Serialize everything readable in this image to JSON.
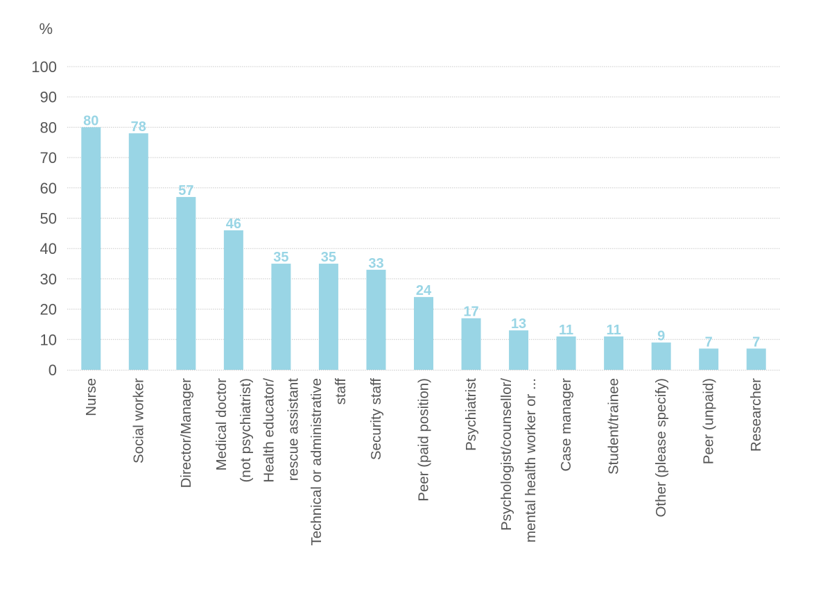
{
  "chart_data": {
    "type": "bar",
    "title": "",
    "ylabel": "%",
    "xlabel": "",
    "ylim": [
      0,
      100
    ],
    "yticks": [
      0,
      10,
      20,
      30,
      40,
      50,
      60,
      70,
      80,
      90,
      100
    ],
    "grid": true,
    "bar_color": "#99d5e5",
    "categories": [
      [
        "Nurse"
      ],
      [
        "Social worker"
      ],
      [
        "Director/Manager"
      ],
      [
        "Medical doctor",
        "(not psychiatrist)"
      ],
      [
        "Health educator/",
        "rescue assistant"
      ],
      [
        "Technical or administrative",
        "staff"
      ],
      [
        "Security staff"
      ],
      [
        "Peer (paid position)"
      ],
      [
        "Psychiatrist"
      ],
      [
        "Psychologist/counsellor/",
        "mental health worker or ..."
      ],
      [
        "Case manager"
      ],
      [
        "Student/trainee"
      ],
      [
        "Other (please specify)"
      ],
      [
        "Peer (unpaid)"
      ],
      [
        "Researcher"
      ]
    ],
    "values": [
      80,
      78,
      57,
      46,
      35,
      35,
      33,
      24,
      17,
      13,
      11,
      11,
      9,
      7,
      7
    ]
  }
}
